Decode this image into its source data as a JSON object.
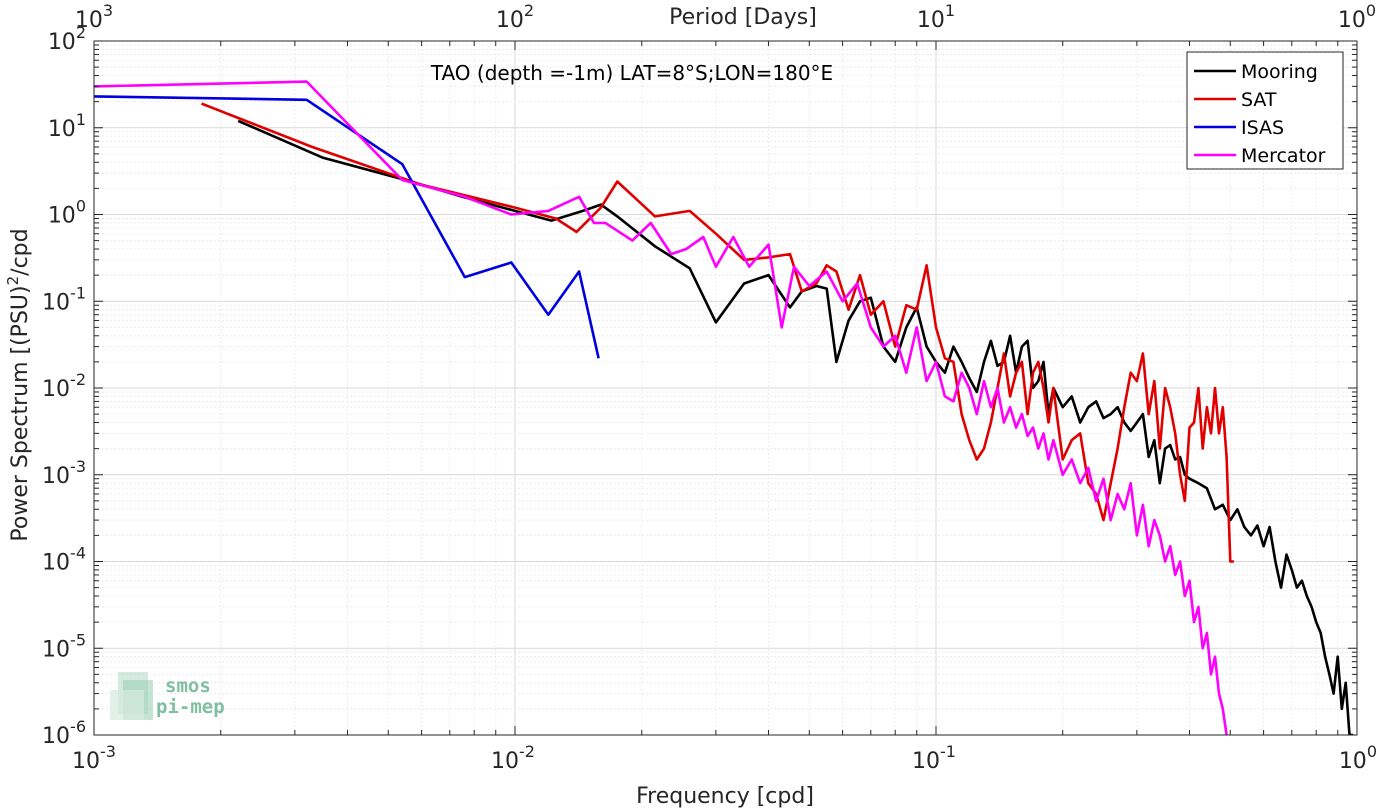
{
  "chart_data": {
    "type": "line",
    "title": "TAO (depth =-1m) LAT=8°S;LON=180°E",
    "xlabel": "Frequency [cpd]",
    "ylabel": "Power Spectrum [(PSU)",
    "ylabel_sup": "2",
    "ylabel_suffix": "/cpd",
    "x2label": "Period [Days]",
    "x_scale": "log",
    "y_scale": "log",
    "xlim": [
      0.001,
      1
    ],
    "ylim": [
      1e-06,
      100
    ],
    "grid": true,
    "legend_position": "top-right",
    "x_ticks": [
      {
        "value": 0.001,
        "base": "10",
        "exp": "-3"
      },
      {
        "value": 0.01,
        "base": "10",
        "exp": "-2"
      },
      {
        "value": 0.1,
        "base": "10",
        "exp": "-1"
      },
      {
        "value": 1,
        "base": "10",
        "exp": "0"
      }
    ],
    "x2_ticks": [
      {
        "value": 0.001,
        "base": "10",
        "exp": "3"
      },
      {
        "value": 0.01,
        "base": "10",
        "exp": "2"
      },
      {
        "value": 0.1,
        "base": "10",
        "exp": "1"
      },
      {
        "value": 1,
        "base": "10",
        "exp": "0"
      }
    ],
    "y_ticks": [
      {
        "value": 100,
        "base": "10",
        "exp": "2"
      },
      {
        "value": 10,
        "base": "10",
        "exp": "1"
      },
      {
        "value": 1,
        "base": "10",
        "exp": "0"
      },
      {
        "value": 0.1,
        "base": "10",
        "exp": "-1"
      },
      {
        "value": 0.01,
        "base": "10",
        "exp": "-2"
      },
      {
        "value": 0.001,
        "base": "10",
        "exp": "-3"
      },
      {
        "value": 0.0001,
        "base": "10",
        "exp": "-4"
      },
      {
        "value": 1e-05,
        "base": "10",
        "exp": "-5"
      },
      {
        "value": 1e-06,
        "base": "10",
        "exp": "-6"
      }
    ],
    "series": [
      {
        "name": "Mooring",
        "color": "#000000",
        "x": [
          0.0022,
          0.0035,
          0.0055,
          0.0075,
          0.01,
          0.0122,
          0.0145,
          0.016,
          0.0175,
          0.0215,
          0.026,
          0.03,
          0.035,
          0.04,
          0.045,
          0.048,
          0.052,
          0.055,
          0.058,
          0.062,
          0.066,
          0.07,
          0.075,
          0.08,
          0.085,
          0.09,
          0.095,
          0.1,
          0.105,
          0.11,
          0.115,
          0.12,
          0.125,
          0.13,
          0.135,
          0.14,
          0.145,
          0.15,
          0.155,
          0.16,
          0.165,
          0.17,
          0.175,
          0.18,
          0.185,
          0.19,
          0.2,
          0.21,
          0.22,
          0.23,
          0.24,
          0.25,
          0.26,
          0.27,
          0.28,
          0.29,
          0.3,
          0.31,
          0.32,
          0.33,
          0.34,
          0.35,
          0.36,
          0.37,
          0.38,
          0.39,
          0.4,
          0.42,
          0.44,
          0.46,
          0.48,
          0.5,
          0.52,
          0.54,
          0.56,
          0.58,
          0.6,
          0.62,
          0.64,
          0.66,
          0.68,
          0.7,
          0.72,
          0.74,
          0.76,
          0.78,
          0.8,
          0.82,
          0.84,
          0.86,
          0.88,
          0.9,
          0.92,
          0.94,
          0.96,
          0.98
        ],
        "y": [
          12,
          4.5,
          2.5,
          1.6,
          1.1,
          0.85,
          1.1,
          1.3,
          0.95,
          0.43,
          0.24,
          0.057,
          0.16,
          0.2,
          0.085,
          0.13,
          0.15,
          0.14,
          0.02,
          0.06,
          0.1,
          0.11,
          0.03,
          0.02,
          0.05,
          0.085,
          0.03,
          0.02,
          0.015,
          0.03,
          0.02,
          0.013,
          0.009,
          0.02,
          0.035,
          0.018,
          0.02,
          0.04,
          0.015,
          0.03,
          0.035,
          0.01,
          0.012,
          0.02,
          0.005,
          0.01,
          0.006,
          0.008,
          0.004,
          0.006,
          0.007,
          0.0045,
          0.005,
          0.006,
          0.004,
          0.0032,
          0.004,
          0.005,
          0.0016,
          0.0025,
          0.0008,
          0.002,
          0.0022,
          0.0015,
          0.0016,
          0.001,
          0.0009,
          0.0008,
          0.0007,
          0.0004,
          0.00045,
          0.0003,
          0.0004,
          0.00025,
          0.0002,
          0.00026,
          0.00015,
          0.00025,
          0.0001,
          5e-05,
          0.00012,
          8e-05,
          5e-05,
          6e-05,
          4e-05,
          3e-05,
          2e-05,
          1.5e-05,
          8e-06,
          5e-06,
          3e-06,
          8e-06,
          2e-06,
          4e-06,
          1e-06,
          1e-06
        ]
      },
      {
        "name": "SAT",
        "color": "#e00000",
        "x": [
          0.0018,
          0.0033,
          0.006,
          0.01,
          0.0125,
          0.014,
          0.016,
          0.0175,
          0.0215,
          0.026,
          0.03,
          0.035,
          0.04,
          0.045,
          0.048,
          0.052,
          0.055,
          0.058,
          0.062,
          0.066,
          0.07,
          0.075,
          0.08,
          0.085,
          0.09,
          0.095,
          0.1,
          0.105,
          0.11,
          0.115,
          0.12,
          0.125,
          0.13,
          0.135,
          0.14,
          0.145,
          0.15,
          0.155,
          0.16,
          0.165,
          0.17,
          0.175,
          0.18,
          0.185,
          0.19,
          0.2,
          0.21,
          0.22,
          0.23,
          0.24,
          0.25,
          0.26,
          0.27,
          0.28,
          0.29,
          0.3,
          0.31,
          0.32,
          0.33,
          0.34,
          0.35,
          0.36,
          0.37,
          0.38,
          0.39,
          0.4,
          0.41,
          0.42,
          0.43,
          0.44,
          0.45,
          0.46,
          0.47,
          0.48,
          0.49,
          0.5,
          0.51
        ],
        "y": [
          19,
          6,
          2.2,
          1.2,
          0.9,
          0.63,
          1.2,
          2.4,
          0.95,
          1.1,
          0.6,
          0.3,
          0.32,
          0.35,
          0.13,
          0.16,
          0.26,
          0.22,
          0.08,
          0.2,
          0.07,
          0.1,
          0.03,
          0.09,
          0.08,
          0.26,
          0.05,
          0.022,
          0.02,
          0.005,
          0.0025,
          0.0015,
          0.002,
          0.004,
          0.01,
          0.025,
          0.008,
          0.015,
          0.02,
          0.005,
          0.015,
          0.02,
          0.01,
          0.004,
          0.01,
          0.0015,
          0.0025,
          0.003,
          0.0008,
          0.0006,
          0.0003,
          0.0008,
          0.002,
          0.006,
          0.015,
          0.012,
          0.025,
          0.005,
          0.012,
          0.002,
          0.01,
          0.006,
          0.003,
          0.001,
          0.0005,
          0.0035,
          0.004,
          0.01,
          0.002,
          0.006,
          0.003,
          0.01,
          0.003,
          0.006,
          0.0016,
          0.0001,
          0.0001
        ]
      },
      {
        "name": "ISAS",
        "color": "#0000e0",
        "x": [
          0.001,
          0.0032,
          0.0054,
          0.0076,
          0.0098,
          0.012,
          0.0142,
          0.0158
        ],
        "y": [
          23,
          21,
          3.8,
          0.19,
          0.28,
          0.07,
          0.22,
          0.022
        ]
      },
      {
        "name": "Mercator",
        "color": "#ff00ff",
        "x": [
          0.001,
          0.0032,
          0.0054,
          0.0076,
          0.0098,
          0.012,
          0.0142,
          0.0154,
          0.0164,
          0.019,
          0.021,
          0.0235,
          0.0255,
          0.028,
          0.03,
          0.033,
          0.036,
          0.04,
          0.043,
          0.046,
          0.05,
          0.055,
          0.06,
          0.065,
          0.07,
          0.075,
          0.08,
          0.085,
          0.09,
          0.095,
          0.1,
          0.105,
          0.11,
          0.115,
          0.12,
          0.125,
          0.13,
          0.135,
          0.14,
          0.145,
          0.15,
          0.155,
          0.16,
          0.165,
          0.17,
          0.175,
          0.18,
          0.185,
          0.19,
          0.2,
          0.21,
          0.22,
          0.23,
          0.24,
          0.25,
          0.26,
          0.27,
          0.28,
          0.29,
          0.3,
          0.31,
          0.32,
          0.33,
          0.34,
          0.35,
          0.36,
          0.37,
          0.38,
          0.39,
          0.4,
          0.41,
          0.42,
          0.43,
          0.44,
          0.45,
          0.46,
          0.47,
          0.48,
          0.49
        ],
        "y": [
          30,
          34,
          2.5,
          1.6,
          1.0,
          1.1,
          1.6,
          0.8,
          0.8,
          0.5,
          0.8,
          0.35,
          0.4,
          0.55,
          0.25,
          0.55,
          0.25,
          0.45,
          0.05,
          0.25,
          0.15,
          0.22,
          0.1,
          0.16,
          0.05,
          0.03,
          0.04,
          0.015,
          0.05,
          0.012,
          0.02,
          0.008,
          0.007,
          0.015,
          0.01,
          0.005,
          0.012,
          0.006,
          0.01,
          0.004,
          0.006,
          0.0035,
          0.005,
          0.0028,
          0.0035,
          0.002,
          0.003,
          0.0015,
          0.0025,
          0.001,
          0.0015,
          0.0008,
          0.0012,
          0.0005,
          0.0009,
          0.0003,
          0.0006,
          0.0004,
          0.0008,
          0.0002,
          0.00045,
          0.00015,
          0.0003,
          0.0002,
          0.0001,
          0.00015,
          7e-05,
          0.0001,
          4e-05,
          6e-05,
          2e-05,
          3e-05,
          1e-05,
          1.5e-05,
          5e-06,
          8e-06,
          3e-06,
          2e-06,
          1e-06
        ]
      }
    ]
  },
  "logo": {
    "line1": "smos",
    "line2": "pi-mep",
    "color": "#7fbf9f"
  }
}
